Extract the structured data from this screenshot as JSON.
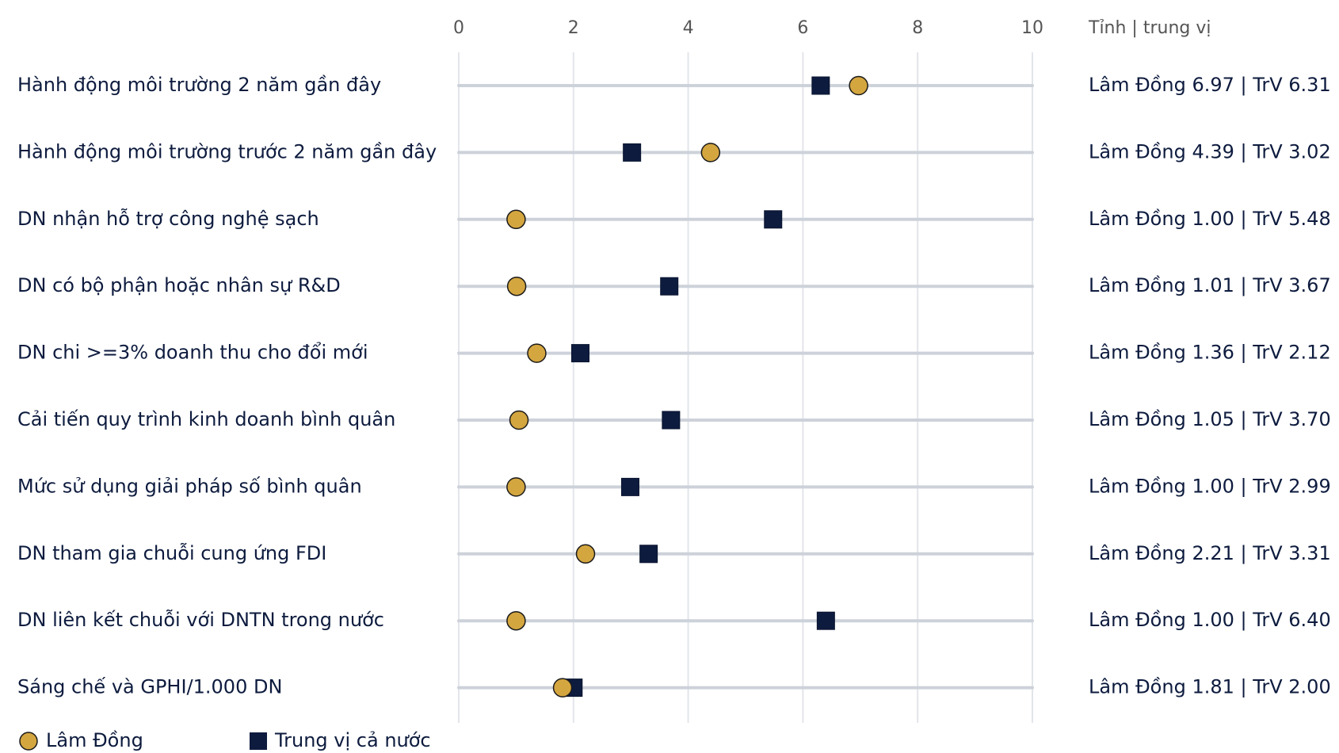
{
  "chart_data": {
    "type": "scatter",
    "xlim": [
      0,
      10
    ],
    "x_ticks": [
      "0",
      "2",
      "4",
      "6",
      "8",
      "10"
    ],
    "x_tick_values": [
      0,
      2,
      4,
      6,
      8,
      10
    ],
    "grid": true,
    "right_header": "Tỉnh | trung vị",
    "categories": [
      "Hành động môi trường 2 năm gần đây",
      "Hành động môi trường trước 2 năm gần đây",
      "DN nhận hỗ trợ công nghệ sạch",
      "DN có bộ phận hoặc nhân sự R&D",
      "DN chi >=3% doanh thu cho đổi mới",
      "Cải tiến quy trình kinh doanh bình quân",
      "Mức sử dụng giải pháp số bình quân",
      "DN tham gia chuỗi cung ứng FDI",
      "DN liên kết chuỗi với DNTN trong nước",
      "Sáng chế và GPHI/1.000 DN"
    ],
    "series": [
      {
        "name": "Lâm Đồng",
        "marker": "circle",
        "color": "#d4a640",
        "values": [
          6.97,
          4.39,
          1.0,
          1.01,
          1.36,
          1.05,
          1.0,
          2.21,
          1.0,
          1.81
        ]
      },
      {
        "name": "Trung vị cả nước",
        "marker": "square",
        "color": "#0d1b3e",
        "values": [
          6.31,
          3.02,
          5.48,
          3.67,
          2.12,
          3.7,
          2.99,
          3.31,
          6.4,
          2.0
        ]
      }
    ],
    "value_labels": [
      "Lâm Đồng 6.97 | TrV 6.31",
      "Lâm Đồng 4.39 | TrV 3.02",
      "Lâm Đồng 1.00 | TrV 5.48",
      "Lâm Đồng 1.01 | TrV 3.67",
      "Lâm Đồng 1.36 | TrV 2.12",
      "Lâm Đồng 1.05 | TrV 3.70",
      "Lâm Đồng 1.00 | TrV 2.99",
      "Lâm Đồng 2.21 | TrV 3.31",
      "Lâm Đồng 1.00 | TrV 6.40",
      "Lâm Đồng 1.81 | TrV 2.00"
    ],
    "legend_position": "bottom-left",
    "colors": {
      "row_line": "#cdd2da",
      "grid": "#e2e5ea",
      "text": "#0d1b3e",
      "tick_text": "#555555"
    }
  }
}
